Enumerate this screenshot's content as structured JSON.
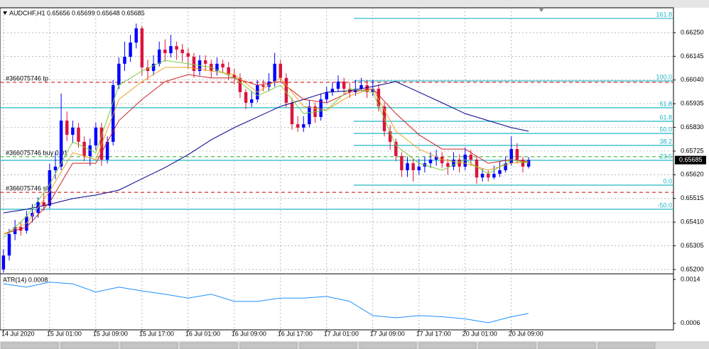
{
  "chart_data": [
    {
      "type": "candlestick",
      "title": "AUDCHF,H1  0.65656 0.65699 0.65648 0.65685",
      "up_color": "#0000ff",
      "down_color": "#dc143c",
      "xlim": [
        -0.6,
        116.1
      ],
      "ylim": [
        0.65184,
        0.6636
      ],
      "xticks": [
        {
          "value": 0,
          "label": "14 Jul 2020"
        },
        {
          "value": 8,
          "label": "15 Jul 01:00"
        },
        {
          "value": 16,
          "label": "15 Jul 09:00"
        },
        {
          "value": 24,
          "label": "15 Jul 17:00"
        },
        {
          "value": 32,
          "label": "16 Jul 01:00"
        },
        {
          "value": 40,
          "label": "16 Jul 09:00"
        },
        {
          "value": 48,
          "label": "16 Jul 17:00"
        },
        {
          "value": 56,
          "label": "17 Jul 01:00"
        },
        {
          "value": 64,
          "label": "17 Jul 09:00"
        },
        {
          "value": 72,
          "label": "17 Jul 17:00"
        },
        {
          "value": 80,
          "label": "20 Jul 01:00"
        },
        {
          "value": 88,
          "label": "20 Jul 09:00"
        }
      ],
      "yticks": [
        {
          "value": 0.6625,
          "label": "0.66250"
        },
        0.66145,
        {
          "value": 0.6604,
          "label": "0.66040"
        },
        0.65935,
        {
          "value": 0.6583,
          "label": "0.65830"
        },
        0.65725,
        {
          "value": 0.6562,
          "label": "0.65620"
        },
        0.65515,
        {
          "value": 0.6541,
          "label": "0.65410"
        },
        0.65305,
        {
          "value": 0.652,
          "label": "0.65200"
        }
      ],
      "grid": true,
      "candles": [
        [
          0.652,
          0.6529,
          0.65185,
          0.65262
        ],
        [
          0.65262,
          0.6538,
          0.6524,
          0.65357
        ],
        [
          0.65357,
          0.6542,
          0.6533,
          0.65388
        ],
        [
          0.65388,
          0.6541,
          0.6535,
          0.65372
        ],
        [
          0.65372,
          0.6546,
          0.6536,
          0.65435
        ],
        [
          0.65435,
          0.6549,
          0.6541,
          0.65451
        ],
        [
          0.65451,
          0.6552,
          0.6543,
          0.65498
        ],
        [
          0.65498,
          0.6554,
          0.6546,
          0.65483
        ],
        [
          0.65483,
          0.6567,
          0.6547,
          0.6564
        ],
        [
          0.6564,
          0.6572,
          0.656,
          0.65656
        ],
        [
          0.65656,
          0.6598,
          0.6564,
          0.6586
        ],
        [
          0.6586,
          0.659,
          0.6577,
          0.65797
        ],
        [
          0.65797,
          0.6586,
          0.6576,
          0.65829
        ],
        [
          0.65829,
          0.6585,
          0.6574,
          0.65766
        ],
        [
          0.65766,
          0.6579,
          0.6568,
          0.65703
        ],
        [
          0.65703,
          0.6578,
          0.6566,
          0.6575
        ],
        [
          0.6575,
          0.6585,
          0.6573,
          0.65829
        ],
        [
          0.65829,
          0.6585,
          0.6566,
          0.65687
        ],
        [
          0.65687,
          0.6579,
          0.6567,
          0.65766
        ],
        [
          0.65766,
          0.6604,
          0.6575,
          0.66017
        ],
        [
          0.66017,
          0.6614,
          0.66,
          0.66112
        ],
        [
          0.66112,
          0.6621,
          0.6608,
          0.66143
        ],
        [
          0.66143,
          0.6624,
          0.6612,
          0.66206
        ],
        [
          0.66206,
          0.6629,
          0.6618,
          0.66269
        ],
        [
          0.66269,
          0.6628,
          0.6606,
          0.66096
        ],
        [
          0.66096,
          0.6613,
          0.6604,
          0.6608
        ],
        [
          0.6608,
          0.6615,
          0.6606,
          0.66112
        ],
        [
          0.66112,
          0.6621,
          0.661,
          0.66175
        ],
        [
          0.66175,
          0.6622,
          0.6612,
          0.66159
        ],
        [
          0.66159,
          0.6624,
          0.6614,
          0.6619
        ],
        [
          0.6619,
          0.6621,
          0.6613,
          0.66175
        ],
        [
          0.66175,
          0.662,
          0.6612,
          0.66159
        ],
        [
          0.66159,
          0.6618,
          0.6609,
          0.66143
        ],
        [
          0.66143,
          0.6616,
          0.6605,
          0.6608
        ],
        [
          0.6608,
          0.6615,
          0.6606,
          0.66127
        ],
        [
          0.66127,
          0.6615,
          0.6608,
          0.66112
        ],
        [
          0.66112,
          0.6613,
          0.6605,
          0.6608
        ],
        [
          0.6608,
          0.6614,
          0.6606,
          0.66112
        ],
        [
          0.66112,
          0.6613,
          0.6607,
          0.66096
        ],
        [
          0.66096,
          0.6612,
          0.6604,
          0.66064
        ],
        [
          0.66064,
          0.6609,
          0.6602,
          0.66049
        ],
        [
          0.66049,
          0.6607,
          0.6596,
          0.65986
        ],
        [
          0.65986,
          0.66,
          0.6591,
          0.65939
        ],
        [
          0.65939,
          0.6599,
          0.6592,
          0.65954
        ],
        [
          0.65954,
          0.6604,
          0.6594,
          0.66017
        ],
        [
          0.66017,
          0.6604,
          0.6599,
          0.6601
        ],
        [
          0.6601,
          0.6607,
          0.6599,
          0.66033
        ],
        [
          0.66033,
          0.6616,
          0.6601,
          0.66112
        ],
        [
          0.66112,
          0.6613,
          0.6603,
          0.66049
        ],
        [
          0.66049,
          0.6607,
          0.6592,
          0.65939
        ],
        [
          0.65939,
          0.6596,
          0.6582,
          0.65844
        ],
        [
          0.65844,
          0.6588,
          0.6581,
          0.65829
        ],
        [
          0.65829,
          0.6588,
          0.6581,
          0.65844
        ],
        [
          0.65844,
          0.6595,
          0.6583,
          0.65923
        ],
        [
          0.65923,
          0.6594,
          0.6585,
          0.65876
        ],
        [
          0.65876,
          0.6598,
          0.6586,
          0.65954
        ],
        [
          0.65954,
          0.6601,
          0.6594,
          0.65986
        ],
        [
          0.65986,
          0.6603,
          0.6597,
          0.66001
        ],
        [
          0.66001,
          0.6606,
          0.6599,
          0.66033
        ],
        [
          0.66033,
          0.6605,
          0.6598,
          0.66001
        ],
        [
          0.66001,
          0.6603,
          0.6596,
          0.65986
        ],
        [
          0.65986,
          0.6604,
          0.6597,
          0.66001
        ],
        [
          0.66001,
          0.6605,
          0.6599,
          0.66017
        ],
        [
          0.66017,
          0.6604,
          0.6596,
          0.65986
        ],
        [
          0.65986,
          0.6604,
          0.6597,
          0.66001
        ],
        [
          0.66001,
          0.6602,
          0.659,
          0.65923
        ],
        [
          0.65923,
          0.6594,
          0.6579,
          0.65813
        ],
        [
          0.65813,
          0.6584,
          0.6573,
          0.65766
        ],
        [
          0.65766,
          0.6578,
          0.6568,
          0.65703
        ],
        [
          0.65703,
          0.6572,
          0.6561,
          0.6564
        ],
        [
          0.6564,
          0.657,
          0.6561,
          0.65671
        ],
        [
          0.65671,
          0.6569,
          0.6559,
          0.6564
        ],
        [
          0.6564,
          0.6569,
          0.6562,
          0.65656
        ],
        [
          0.65656,
          0.657,
          0.6563,
          0.65671
        ],
        [
          0.65671,
          0.6572,
          0.6565,
          0.65687
        ],
        [
          0.65687,
          0.6573,
          0.6566,
          0.657
        ],
        [
          0.657,
          0.6572,
          0.6565,
          0.65671
        ],
        [
          0.65671,
          0.6569,
          0.6562,
          0.65656
        ],
        [
          0.65656,
          0.6572,
          0.6564,
          0.65687
        ],
        [
          0.65687,
          0.6571,
          0.6563,
          0.65656
        ],
        [
          0.65656,
          0.6574,
          0.6564,
          0.65709
        ],
        [
          0.65709,
          0.6573,
          0.6566,
          0.65687
        ],
        [
          0.65687,
          0.657,
          0.6558,
          0.65608
        ],
        [
          0.65608,
          0.6565,
          0.6559,
          0.65624
        ],
        [
          0.65624,
          0.6564,
          0.6559,
          0.65608
        ],
        [
          0.65608,
          0.6566,
          0.656,
          0.65624
        ],
        [
          0.65624,
          0.6568,
          0.6561,
          0.6564
        ],
        [
          0.6564,
          0.657,
          0.6563,
          0.65671
        ],
        [
          0.65671,
          0.6579,
          0.6566,
          0.65734
        ],
        [
          0.65734,
          0.6576,
          0.6567,
          0.65687
        ],
        [
          0.65687,
          0.657,
          0.6563,
          0.65656
        ],
        [
          0.65656,
          0.65699,
          0.65648,
          0.65685
        ]
      ],
      "line_x": [
        0,
        4,
        8,
        12,
        16,
        20,
        24,
        28,
        32,
        36,
        40,
        44,
        48,
        52,
        56,
        60,
        64,
        68,
        72,
        76,
        80,
        84,
        88,
        91
      ],
      "lines": [
        {
          "color": "#00008b",
          "values": [
            0.65451,
            0.65467,
            0.65489,
            0.65514,
            0.6553,
            0.65552,
            0.65602,
            0.65652,
            0.65709,
            0.65775,
            0.65829,
            0.65876,
            0.65923,
            0.65954,
            0.65986,
            0.65992,
            0.66011,
            0.66033,
            0.65986,
            0.65939,
            0.65891,
            0.6586,
            0.65829,
            0.65813
          ]
        },
        {
          "color": "#cc2222",
          "values": [
            0.65357,
            0.65388,
            0.65498,
            0.65671,
            0.65671,
            0.6586,
            0.65954,
            0.66033,
            0.66064,
            0.66049,
            0.66049,
            0.66017,
            0.66033,
            0.65954,
            0.65939,
            0.65986,
            0.66001,
            0.65891,
            0.65797,
            0.65734,
            0.65734,
            0.65671,
            0.65687,
            0.65678
          ]
        },
        {
          "color": "#f0a020",
          "values": [
            0.65357,
            0.65404,
            0.65546,
            0.65718,
            0.65687,
            0.65954,
            0.66033,
            0.66096,
            0.66096,
            0.6608,
            0.66064,
            0.65986,
            0.66049,
            0.65923,
            0.65907,
            0.6597,
            0.66001,
            0.65813,
            0.65734,
            0.65687,
            0.65671,
            0.6564,
            0.65671,
            0.65678
          ]
        },
        {
          "color": "#7ccd3c",
          "values": [
            0.65341,
            0.65435,
            0.65577,
            0.65766,
            0.65718,
            0.66017,
            0.6608,
            0.66127,
            0.66112,
            0.66096,
            0.66049,
            0.6597,
            0.66017,
            0.65891,
            0.65907,
            0.66001,
            0.65986,
            0.6575,
            0.65671,
            0.6564,
            0.65687,
            0.65624,
            0.65687,
            0.65671
          ]
        }
      ],
      "fib_color": "#20b8c8",
      "fib_levels": [
        {
          "label": "161.8",
          "value": 0.66313,
          "start": 60.7
        },
        {
          "label": "100.0",
          "value": 0.66036,
          "start": 60.7
        },
        {
          "label": "61.8",
          "value": 0.65917,
          "start": -0.6
        },
        {
          "label": "61.8",
          "value": 0.65857,
          "start": 60.7
        },
        {
          "label": "50.0",
          "value": 0.65803,
          "start": 60.7
        },
        {
          "label": "38.2",
          "value": 0.6575,
          "start": 60.7
        },
        {
          "label": "23.6",
          "value": 0.65684,
          "start": -0.6
        },
        {
          "label": "0.0",
          "value": 0.65574,
          "start": 60.7
        },
        {
          "label": "-50.0",
          "value": 0.65467,
          "start": -0.6
        }
      ],
      "order_lines": [
        {
          "label": "#366075746 tp",
          "value": 0.6603,
          "color": "#cc0000"
        },
        {
          "label": "#366075746 buy 0.01",
          "value": 0.657,
          "color": "#22aa22"
        },
        {
          "label": "#366075746 sl",
          "value": 0.65542,
          "color": "#cc0000"
        }
      ]
    },
    {
      "type": "line",
      "title": "ATR(14) 0.0008",
      "color": "#1e90ff",
      "ylim": [
        0.00048,
        0.00149
      ],
      "yticks": [
        0.0014,
        0.0006
      ],
      "x": [
        0,
        4,
        8,
        12,
        16,
        20,
        24,
        28,
        32,
        36,
        40,
        44,
        48,
        52,
        56,
        60,
        64,
        68,
        72,
        76,
        80,
        84,
        88,
        91
      ],
      "values": [
        0.00132,
        0.00126,
        0.00135,
        0.00132,
        0.00117,
        0.00126,
        0.00119,
        0.00113,
        0.00106,
        0.00113,
        0.001,
        0.001,
        0.00106,
        0.00106,
        0.00109,
        0.001,
        0.00074,
        0.0007,
        0.00074,
        0.00072,
        0.00068,
        0.00061,
        0.00072,
        0.00078
      ]
    }
  ]
}
